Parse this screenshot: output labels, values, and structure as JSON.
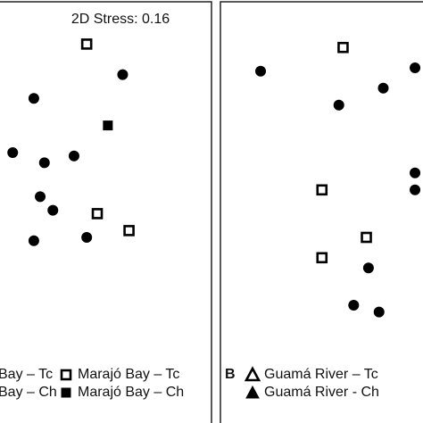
{
  "chart_data": [
    {
      "type": "scatter",
      "annotation": "2D Stress: 0.16",
      "xlim": [
        0,
        100
      ],
      "ylim": [
        0,
        100
      ],
      "series": [
        {
          "name": "Bay – Tc",
          "marker": "triangle",
          "filled": false,
          "color": "#000000",
          "x": [],
          "y": []
        },
        {
          "name": "Bay – Ch",
          "marker": "triangle",
          "filled": true,
          "color": "#000000",
          "x": [],
          "y": []
        },
        {
          "name": "Marajó Bay – Tc",
          "marker": "square",
          "filled": false,
          "color": "#000000",
          "x": [
            41,
            46,
            61
          ],
          "y": [
            87,
            37,
            32
          ]
        },
        {
          "name": "Marajó Bay – Ch",
          "marker": "square",
          "filled": true,
          "color": "#000000",
          "x": [
            51
          ],
          "y": [
            63
          ]
        },
        {
          "marker": "circle",
          "filled": true,
          "color": "#000000",
          "x": [
            58,
            16,
            6,
            21,
            35,
            19,
            25,
            16,
            41
          ],
          "y": [
            78,
            71,
            55,
            52,
            54,
            42,
            38,
            29,
            30
          ]
        }
      ]
    },
    {
      "type": "scatter",
      "panel_label": "B",
      "xlim": [
        0,
        100
      ],
      "ylim": [
        0,
        100
      ],
      "series": [
        {
          "name": "Guamá River – Tc",
          "marker": "triangle",
          "filled": false,
          "color": "#000000",
          "x": [],
          "y": []
        },
        {
          "name": "Guamá River - Ch",
          "marker": "triangle",
          "filled": true,
          "color": "#000000",
          "x": [],
          "y": []
        },
        {
          "marker": "square",
          "filled": false,
          "color": "#000000",
          "x": [
            58,
            48,
            69,
            48
          ],
          "y": [
            86,
            44,
            30,
            24
          ]
        },
        {
          "marker": "circle",
          "filled": true,
          "color": "#000000",
          "x": [
            19,
            56,
            77,
            92,
            92,
            92,
            70,
            63,
            75
          ],
          "y": [
            79,
            69,
            74,
            80,
            49,
            44,
            21,
            10,
            8
          ]
        }
      ]
    }
  ]
}
